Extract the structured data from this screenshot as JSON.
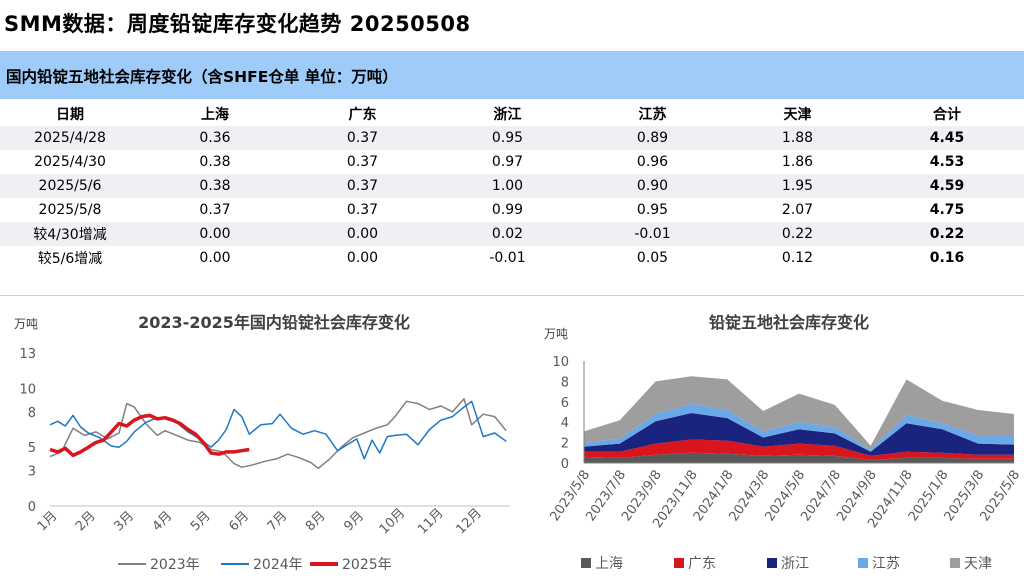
{
  "page_title": "SMM数据：周度铅锭库存变化趋势 20250508",
  "table": {
    "title": "国内铅锭五地社会库存变化（含SHFE仓单 单位：万吨）",
    "headers": [
      "日期",
      "上海",
      "广东",
      "浙江",
      "江苏",
      "天津",
      "合计"
    ],
    "rows": [
      [
        "2025/4/28",
        "0.36",
        "0.37",
        "0.95",
        "0.89",
        "1.88",
        "4.45"
      ],
      [
        "2025/4/30",
        "0.38",
        "0.37",
        "0.97",
        "0.96",
        "1.86",
        "4.53"
      ],
      [
        "2025/5/6",
        "0.38",
        "0.37",
        "1.00",
        "0.90",
        "1.95",
        "4.59"
      ],
      [
        "2025/5/8",
        "0.37",
        "0.37",
        "0.99",
        "0.95",
        "2.07",
        "4.75"
      ],
      [
        "较4/30增减",
        "0.00",
        "0.00",
        "0.02",
        "-0.01",
        "0.22",
        "0.22"
      ],
      [
        "较5/6增减",
        "0.00",
        "0.00",
        "-0.01",
        "0.05",
        "0.12",
        "0.16"
      ]
    ]
  },
  "chart_data": [
    {
      "type": "line",
      "title": "2023-2025年国内铅锭社会库存变化",
      "ylabel": "万吨",
      "ylim": [
        0,
        13
      ],
      "yticks": [
        0,
        3,
        5,
        8,
        10,
        13
      ],
      "categories": [
        "1月",
        "2月",
        "3月",
        "4月",
        "5月",
        "6月",
        "7月",
        "8月",
        "9月",
        "10月",
        "11月",
        "12月"
      ],
      "legend_position": "bottom",
      "series": [
        {
          "name": "2023年",
          "color": "#808080",
          "x": [
            0,
            0.3,
            0.6,
            0.9,
            1.2,
            1.5,
            1.8,
            2.0,
            2.2,
            2.5,
            2.8,
            3.0,
            3.3,
            3.6,
            3.9,
            4.2,
            4.5,
            4.8,
            5.0,
            5.3,
            5.6,
            5.9,
            6.2,
            6.5,
            6.8,
            7.0,
            7.3,
            7.6,
            7.9,
            8.2,
            8.5,
            8.8,
            9.0,
            9.3,
            9.6,
            9.9,
            10.2,
            10.5,
            10.8,
            11.0,
            11.3,
            11.6,
            11.9
          ],
          "values": [
            4.2,
            4.6,
            6.6,
            6.0,
            6.3,
            5.7,
            6.2,
            8.7,
            8.4,
            7.0,
            6.0,
            6.4,
            6.0,
            5.6,
            5.4,
            4.8,
            4.6,
            3.6,
            3.3,
            3.5,
            3.8,
            4.0,
            4.4,
            4.1,
            3.7,
            3.2,
            4.0,
            5.0,
            5.8,
            6.2,
            6.6,
            6.9,
            7.6,
            8.9,
            8.7,
            8.2,
            8.5,
            8.0,
            9.1,
            6.9,
            7.8,
            7.6,
            6.4
          ]
        },
        {
          "name": "2024年",
          "color": "#1f77c4",
          "x": [
            0,
            0.2,
            0.4,
            0.6,
            0.8,
            1.0,
            1.3,
            1.6,
            1.8,
            2.0,
            2.2,
            2.5,
            2.8,
            3.0,
            3.3,
            3.6,
            3.9,
            4.2,
            4.4,
            4.6,
            4.8,
            5.0,
            5.2,
            5.5,
            5.8,
            6.0,
            6.3,
            6.6,
            6.9,
            7.2,
            7.5,
            7.8,
            8.0,
            8.2,
            8.4,
            8.6,
            8.8,
            9.0,
            9.3,
            9.6,
            9.9,
            10.2,
            10.5,
            10.8,
            11.0,
            11.3,
            11.6,
            11.9
          ],
          "values": [
            6.9,
            7.2,
            6.8,
            7.7,
            6.7,
            6.2,
            5.8,
            5.1,
            5.0,
            5.5,
            6.3,
            7.1,
            7.5,
            7.4,
            7.1,
            6.3,
            5.7,
            5.0,
            5.6,
            6.5,
            8.2,
            7.6,
            6.1,
            6.9,
            7.0,
            7.8,
            6.6,
            6.1,
            6.4,
            6.1,
            4.7,
            5.3,
            5.7,
            4.0,
            5.6,
            4.5,
            5.9,
            6.0,
            6.1,
            5.2,
            6.5,
            7.3,
            7.6,
            8.4,
            8.9,
            5.9,
            6.2,
            5.5
          ]
        },
        {
          "name": "2025年",
          "color": "#d9161e",
          "x": [
            0,
            0.2,
            0.4,
            0.6,
            0.8,
            1.0,
            1.2,
            1.4,
            1.6,
            1.8,
            2.0,
            2.2,
            2.4,
            2.6,
            2.8,
            3.0,
            3.2,
            3.4,
            3.6,
            3.8,
            4.0,
            4.2,
            4.4,
            4.6,
            4.8,
            5.0,
            5.2
          ],
          "values": [
            4.8,
            4.6,
            4.9,
            4.3,
            4.6,
            5.0,
            5.4,
            5.6,
            6.3,
            7.0,
            6.8,
            7.3,
            7.6,
            7.7,
            7.4,
            7.5,
            7.3,
            7.0,
            6.5,
            6.1,
            5.4,
            4.5,
            4.4,
            4.6,
            4.6,
            4.7,
            4.8
          ]
        }
      ]
    },
    {
      "type": "area",
      "stacked": true,
      "title": "铅锭五地社会库存变化",
      "ylabel": "万吨",
      "ylim": [
        0,
        10
      ],
      "yticks": [
        0,
        2,
        4,
        6,
        8,
        10
      ],
      "categories": [
        "2023/5/8",
        "2023/7/8",
        "2023/9/8",
        "2023/11/8",
        "2024/1/8",
        "2024/3/8",
        "2024/5/8",
        "2024/7/8",
        "2024/9/8",
        "2024/11/8",
        "2025/1/8",
        "2025/3/8",
        "2025/5/8"
      ],
      "legend_position": "bottom",
      "series": [
        {
          "name": "上海",
          "color": "#595959",
          "values": [
            0.6,
            0.5,
            0.8,
            1.0,
            0.9,
            0.7,
            0.8,
            0.7,
            0.3,
            0.5,
            0.5,
            0.4,
            0.4
          ]
        },
        {
          "name": "广东",
          "color": "#d9161e",
          "values": [
            0.5,
            0.6,
            1.1,
            1.3,
            1.3,
            0.9,
            1.1,
            1.0,
            0.4,
            0.6,
            0.5,
            0.4,
            0.4
          ]
        },
        {
          "name": "浙江",
          "color": "#1a237e",
          "values": [
            0.5,
            0.8,
            2.2,
            2.6,
            2.2,
            0.9,
            1.4,
            1.2,
            0.4,
            2.8,
            2.3,
            1.1,
            1.0
          ]
        },
        {
          "name": "江苏",
          "color": "#6aa8e8",
          "values": [
            0.4,
            0.5,
            0.7,
            0.9,
            0.8,
            0.6,
            0.7,
            0.6,
            0.2,
            0.8,
            0.6,
            0.8,
            0.9
          ]
        },
        {
          "name": "天津",
          "color": "#9e9e9e",
          "values": [
            1.1,
            1.8,
            3.2,
            2.7,
            3.0,
            2.0,
            2.8,
            2.2,
            0.4,
            3.5,
            2.2,
            2.5,
            2.1
          ]
        }
      ]
    }
  ]
}
